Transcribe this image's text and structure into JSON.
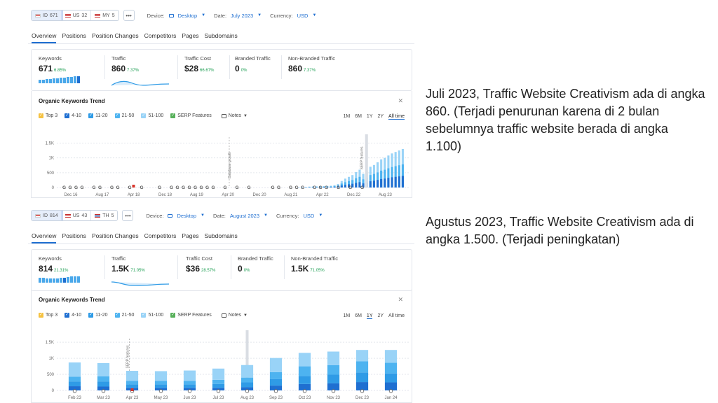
{
  "panels": [
    {
      "databases": [
        {
          "code": "ID",
          "count": "671",
          "active": true
        },
        {
          "code": "US",
          "count": "32",
          "active": false
        },
        {
          "code": "MY",
          "count": "5",
          "active": false
        }
      ],
      "device_label": "Device:",
      "device_value": "Desktop",
      "date_label": "Date:",
      "date_value": "July 2023",
      "currency_label": "Currency:",
      "currency_value": "USD",
      "tabs": [
        "Overview",
        "Positions",
        "Position Changes",
        "Competitors",
        "Pages",
        "Subdomains"
      ],
      "metrics": {
        "keywords": {
          "label": "Keywords",
          "value": "671",
          "pct": "6.85%"
        },
        "traffic": {
          "label": "Traffic",
          "value": "860",
          "pct": "7.37%"
        },
        "traffic_cost": {
          "label": "Traffic Cost",
          "value": "$28",
          "pct": "66.67%"
        },
        "branded": {
          "label": "Branded Traffic",
          "value": "0",
          "pct": "0%"
        },
        "non_branded": {
          "label": "Non-Branded Traffic",
          "value": "860",
          "pct": "7.37%"
        }
      },
      "trend_title": "Organic Keywords Trend",
      "legend": [
        "Top 3",
        "4-10",
        "11-20",
        "21-50",
        "51-100",
        "SERP Features"
      ],
      "notes_label": "Notes",
      "ranges": [
        "1M",
        "6M",
        "1Y",
        "2Y",
        "All time"
      ],
      "active_range": "All time",
      "annotations": [
        "Database growth",
        "SERP features"
      ]
    },
    {
      "databases": [
        {
          "code": "ID",
          "count": "814",
          "active": true
        },
        {
          "code": "US",
          "count": "43",
          "active": false
        },
        {
          "code": "TH",
          "count": "5",
          "active": false
        }
      ],
      "device_label": "Device:",
      "device_value": "Desktop",
      "date_label": "Date:",
      "date_value": "August 2023",
      "currency_label": "Currency:",
      "currency_value": "USD",
      "tabs": [
        "Overview",
        "Positions",
        "Position Changes",
        "Competitors",
        "Pages",
        "Subdomains"
      ],
      "metrics": {
        "keywords": {
          "label": "Keywords",
          "value": "814",
          "pct": "21.31%"
        },
        "traffic": {
          "label": "Traffic",
          "value": "1.5K",
          "pct": "71.05%"
        },
        "traffic_cost": {
          "label": "Traffic Cost",
          "value": "$36",
          "pct": "28.57%"
        },
        "branded": {
          "label": "Branded Traffic",
          "value": "0",
          "pct": "0%"
        },
        "non_branded": {
          "label": "Non-Branded Traffic",
          "value": "1.5K",
          "pct": "71.05%"
        }
      },
      "trend_title": "Organic Keywords Trend",
      "legend": [
        "Top 3",
        "4-10",
        "11-20",
        "21-50",
        "51-100",
        "SERP Features"
      ],
      "notes_label": "Notes",
      "ranges": [
        "1M",
        "6M",
        "1Y",
        "2Y",
        "All time"
      ],
      "active_range": "1Y",
      "annotations": [
        "SERP features"
      ]
    }
  ],
  "chart_data": [
    {
      "type": "bar",
      "y_ticks": [
        "1.5K",
        "1K",
        "500",
        "0"
      ],
      "ylim": [
        0,
        1700
      ],
      "x_labels": [
        "Dec 16",
        "Aug 17",
        "Apr 18",
        "Dec 18",
        "Aug 19",
        "Apr 20",
        "Dec 20",
        "Aug 21",
        "Apr 22",
        "Dec 22",
        "Aug 23"
      ],
      "values": [
        0,
        0,
        0,
        0,
        0,
        0,
        0,
        0,
        0,
        0,
        0,
        0,
        0,
        0,
        0,
        0,
        0,
        0,
        0,
        0,
        0,
        0,
        0,
        0,
        0,
        0,
        0,
        0,
        0,
        0,
        0,
        0,
        0,
        0,
        0,
        0,
        0,
        0,
        0,
        0,
        0,
        0,
        0,
        0,
        0,
        0,
        0,
        0,
        0,
        0,
        0,
        0,
        0,
        0,
        0,
        0,
        0,
        0,
        0,
        0,
        0,
        0,
        0,
        0,
        0,
        0,
        10,
        15,
        20,
        30,
        35,
        40,
        45,
        45,
        50,
        60,
        80,
        120,
        220,
        300,
        360,
        420,
        520,
        600,
        460,
        540,
        700,
        760,
        850,
        950,
        1000,
        1080,
        1150,
        1200,
        1250,
        1300
      ]
    },
    {
      "type": "bar",
      "y_ticks": [
        "1.5K",
        "1K",
        "500",
        "0"
      ],
      "ylim": [
        0,
        1700
      ],
      "categories": [
        "Feb 23",
        "Mar 23",
        "Apr 23",
        "May 23",
        "Jun 23",
        "Jul 23",
        "Aug 23",
        "Sep 23",
        "Oct 23",
        "Nov 23",
        "Dec 23",
        "Jan 24"
      ],
      "series": [
        {
          "name": "Top 3",
          "values": [
            20,
            20,
            10,
            10,
            10,
            10,
            15,
            20,
            30,
            30,
            40,
            40
          ]
        },
        {
          "name": "4-10",
          "values": [
            130,
            120,
            80,
            80,
            80,
            80,
            100,
            150,
            200,
            220,
            260,
            250
          ]
        },
        {
          "name": "11-20",
          "values": [
            150,
            160,
            110,
            110,
            110,
            120,
            150,
            200,
            250,
            270,
            300,
            280
          ]
        },
        {
          "name": "21-50",
          "values": [
            150,
            160,
            110,
            110,
            110,
            130,
            150,
            220,
            300,
            300,
            350,
            330
          ]
        },
        {
          "name": "51-100",
          "values": [
            440,
            410,
            310,
            300,
            320,
            350,
            390,
            440,
            420,
            420,
            350,
            400
          ]
        }
      ]
    }
  ],
  "captions": [
    "Juli 2023, Traffic Website Creativism ada di angka 860. (Terjadi penurunan karena di 2 bulan sebelumnya traffic website berada di angka 1.100)",
    "Agustus 2023, Traffic Website Creativism ada di angka 1.500. (Terjadi peningkatan)"
  ],
  "colors": {
    "accent": "#1f6fd1",
    "top3": "#f5c242",
    "r4_10": "#1f6fd1",
    "r11_20": "#2f9be6",
    "r21_50": "#4db3f0",
    "r51_100": "#99d3f7",
    "serp": "#57b05a",
    "positive": "#1f9f54"
  }
}
